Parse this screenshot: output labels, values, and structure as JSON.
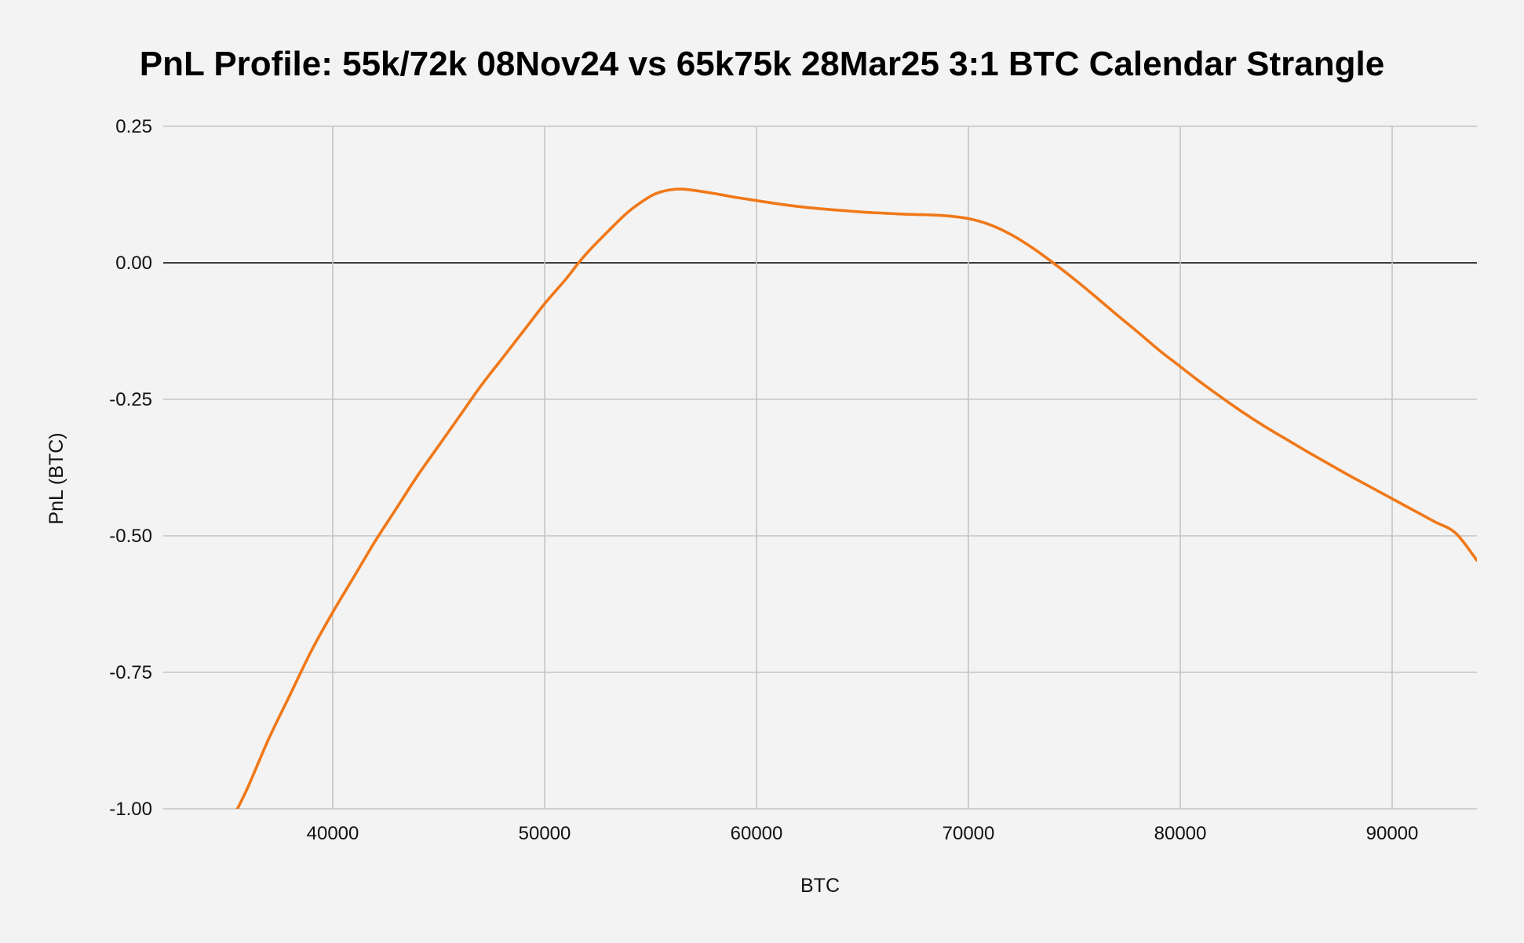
{
  "chart_data": {
    "type": "line",
    "title": "PnL Profile: 55k/72k 08Nov24 vs 65k75k 28Mar25 3:1 BTC Calendar Strangle",
    "xlabel": "BTC",
    "ylabel": "PnL (BTC)",
    "xlim": [
      32000,
      94000
    ],
    "ylim": [
      -1.0,
      0.25
    ],
    "x_ticks": [
      40000,
      50000,
      60000,
      70000,
      80000,
      90000
    ],
    "x_tick_labels": [
      "40000",
      "50000",
      "60000",
      "70000",
      "80000",
      "90000"
    ],
    "y_ticks": [
      0.25,
      0.0,
      -0.25,
      -0.5,
      -0.75,
      -1.0
    ],
    "y_tick_labels": [
      "0.25",
      "0.00",
      "-0.25",
      "-0.50",
      "-0.75",
      "-1.00"
    ],
    "grid": true,
    "series": [
      {
        "color": "#f07818",
        "x": [
          35500,
          36000,
          37000,
          38000,
          39000,
          40000,
          41000,
          42000,
          43000,
          44000,
          45000,
          46000,
          47000,
          48000,
          49000,
          50000,
          51000,
          51500,
          52000,
          53000,
          54000,
          55000,
          55500,
          56000,
          56500,
          57000,
          58000,
          59000,
          60000,
          61000,
          62000,
          63000,
          64000,
          65000,
          66000,
          67000,
          68000,
          69000,
          70000,
          71000,
          72000,
          73000,
          74000,
          75000,
          76000,
          77000,
          78000,
          79000,
          80000,
          81000,
          82000,
          83000,
          84000,
          85000,
          86000,
          87000,
          88000,
          89000,
          90000,
          91000,
          92000,
          93000,
          94000
        ],
        "y": [
          -1.0,
          -0.96,
          -0.87,
          -0.79,
          -0.71,
          -0.64,
          -0.575,
          -0.51,
          -0.45,
          -0.39,
          -0.335,
          -0.28,
          -0.225,
          -0.175,
          -0.125,
          -0.075,
          -0.03,
          -0.005,
          0.018,
          0.058,
          0.095,
          0.122,
          0.13,
          0.134,
          0.135,
          0.133,
          0.127,
          0.12,
          0.114,
          0.108,
          0.103,
          0.099,
          0.096,
          0.093,
          0.091,
          0.089,
          0.088,
          0.086,
          0.081,
          0.07,
          0.052,
          0.028,
          0.0,
          -0.03,
          -0.062,
          -0.095,
          -0.127,
          -0.16,
          -0.19,
          -0.22,
          -0.248,
          -0.275,
          -0.3,
          -0.323,
          -0.346,
          -0.368,
          -0.39,
          -0.411,
          -0.432,
          -0.453,
          -0.474,
          -0.495,
          -0.545
        ]
      }
    ]
  }
}
